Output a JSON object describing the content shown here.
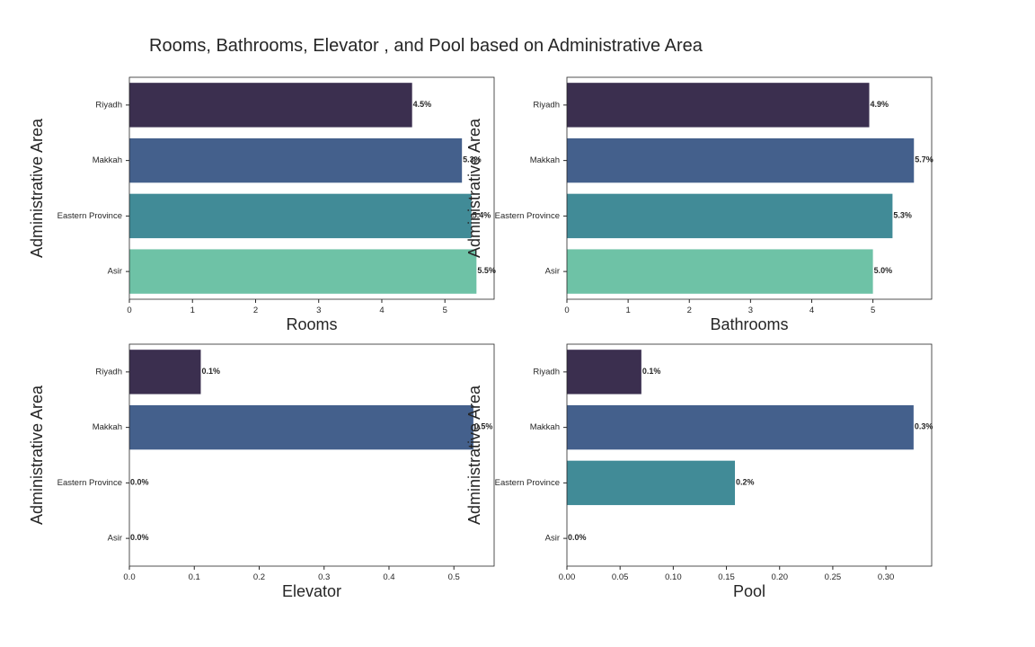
{
  "figure": {
    "title": "Rooms, Bathrooms, Elevator , and Pool based on Administrative Area"
  },
  "colors": [
    "#3b2f4f",
    "#44608c",
    "#418b97",
    "#6ec2a6"
  ],
  "chart_data": [
    {
      "type": "bar",
      "orientation": "horizontal",
      "categories": [
        "Riyadh",
        "Makkah",
        "Eastern Province",
        "Asir"
      ],
      "values": [
        4.48,
        5.27,
        5.42,
        5.5
      ],
      "labels": [
        "4.5%",
        "5.3%",
        "5.4%",
        "5.5%"
      ],
      "xlabel": "Rooms",
      "ylabel": "Administrative Area",
      "xlim": [
        0,
        5.78
      ],
      "xticks": [
        0,
        1,
        2,
        3,
        4,
        5
      ],
      "xticklabels": [
        "0",
        "1",
        "2",
        "3",
        "4",
        "5"
      ]
    },
    {
      "type": "bar",
      "orientation": "horizontal",
      "categories": [
        "Riyadh",
        "Makkah",
        "Eastern Province",
        "Asir"
      ],
      "values": [
        4.94,
        5.67,
        5.32,
        5.0
      ],
      "labels": [
        "4.9%",
        "5.7%",
        "5.3%",
        "5.0%"
      ],
      "xlabel": "Bathrooms",
      "ylabel": "Administrative Area",
      "xlim": [
        0,
        5.96
      ],
      "xticks": [
        0,
        1,
        2,
        3,
        4,
        5
      ],
      "xticklabels": [
        "0",
        "1",
        "2",
        "3",
        "4",
        "5"
      ]
    },
    {
      "type": "bar",
      "orientation": "horizontal",
      "categories": [
        "Riyadh",
        "Makkah",
        "Eastern Province",
        "Asir"
      ],
      "values": [
        0.11,
        0.53,
        0.0,
        0.0
      ],
      "labels": [
        "0.1%",
        "0.5%",
        "0.0%",
        "0.0%"
      ],
      "xlabel": "Elevator",
      "ylabel": "Administrative Area",
      "xlim": [
        0,
        0.562
      ],
      "xticks": [
        0,
        0.1,
        0.2,
        0.3,
        0.4,
        0.5
      ],
      "xticklabels": [
        "0.0",
        "0.1",
        "0.2",
        "0.3",
        "0.4",
        "0.5"
      ]
    },
    {
      "type": "bar",
      "orientation": "horizontal",
      "categories": [
        "Riyadh",
        "Makkah",
        "Eastern Province",
        "Asir"
      ],
      "values": [
        0.07,
        0.326,
        0.158,
        0.0
      ],
      "labels": [
        "0.1%",
        "0.3%",
        "0.2%",
        "0.0%"
      ],
      "xlabel": "Pool",
      "ylabel": "Administrative Area",
      "xlim": [
        0,
        0.343
      ],
      "xticks": [
        0,
        0.05,
        0.1,
        0.15,
        0.2,
        0.25,
        0.3
      ],
      "xticklabels": [
        "0.00",
        "0.05",
        "0.10",
        "0.15",
        "0.20",
        "0.25",
        "0.30"
      ]
    }
  ]
}
